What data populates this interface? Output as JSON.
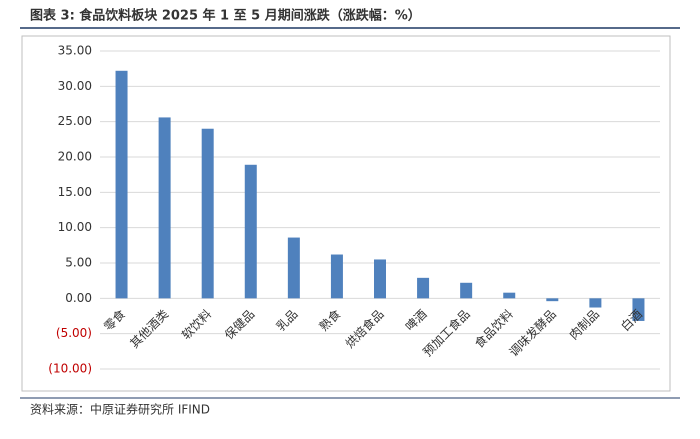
{
  "chart_data": {
    "type": "bar",
    "title": "图表 3: 食品饮料板块 2025 年 1 至 5 月期间涨跌（涨跌幅：%）",
    "categories": [
      "零食",
      "其他酒类",
      "软饮料",
      "保健品",
      "乳品",
      "熟食",
      "烘焙食品",
      "啤酒",
      "预加工食品",
      "食品饮料",
      "调味发酵品",
      "肉制品",
      "白酒"
    ],
    "values": [
      32.2,
      25.6,
      24.0,
      18.9,
      8.6,
      6.2,
      5.5,
      2.9,
      2.2,
      0.8,
      -0.4,
      -1.3,
      -3.2
    ],
    "color": "#4f81bd",
    "ylim": [
      -10,
      35
    ],
    "yticks": [
      {
        "value": -10,
        "label": "(10.00)"
      },
      {
        "value": -5,
        "label": "(5.00)"
      },
      {
        "value": 0,
        "label": "0.00"
      },
      {
        "value": 5,
        "label": "5.00"
      },
      {
        "value": 10,
        "label": "10.00"
      },
      {
        "value": 15,
        "label": "15.00"
      },
      {
        "value": 20,
        "label": "20.00"
      },
      {
        "value": 25,
        "label": "25.00"
      },
      {
        "value": 30,
        "label": "30.00"
      },
      {
        "value": 35,
        "label": "35.00"
      }
    ],
    "grid": true,
    "source": "资料来源：中原证券研究所    IFIND"
  }
}
